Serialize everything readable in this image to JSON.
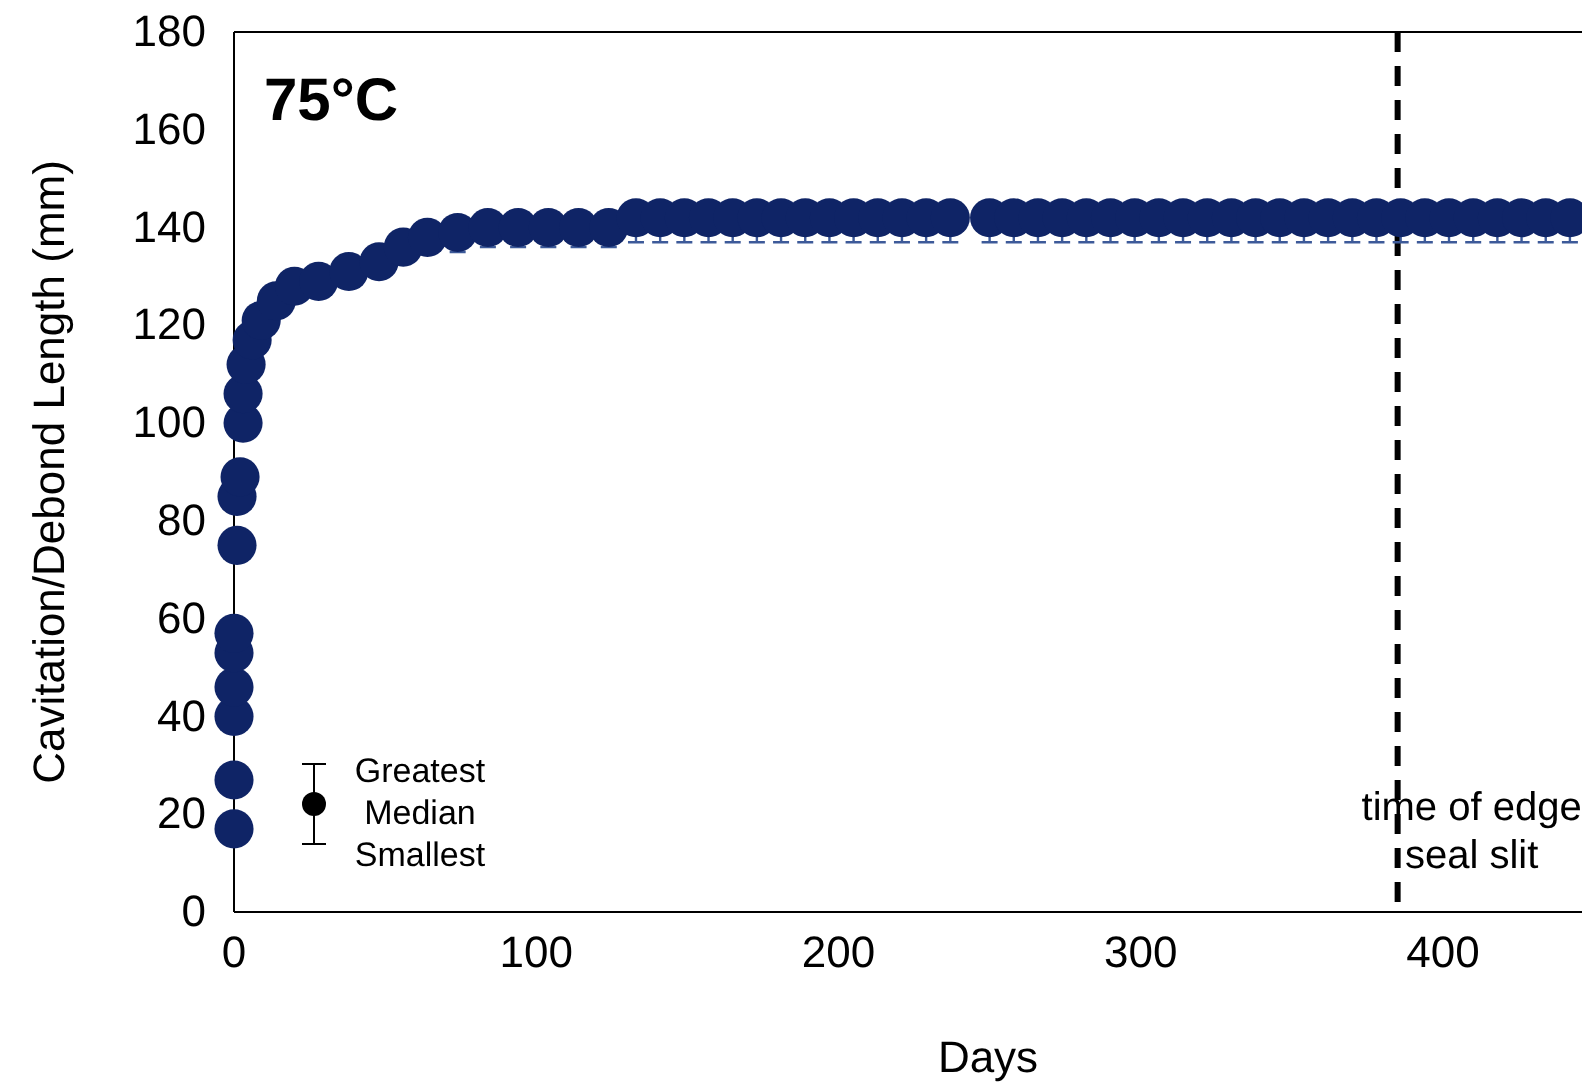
{
  "chart_data": {
    "type": "scatter",
    "xlabel": "Days",
    "ylabel": "Cavitation/Debond Length (mm)",
    "xlim": [
      0,
      446
    ],
    "xticks": [
      0,
      100,
      200,
      300,
      400
    ],
    "ylim": [
      0,
      180
    ],
    "yticks": [
      0,
      20,
      40,
      60,
      80,
      100,
      120,
      140,
      160,
      180
    ],
    "grid": false,
    "marker": "circle",
    "series": [
      {
        "color": "#0f2466",
        "x": [
          0,
          0,
          0,
          0,
          0,
          0,
          1,
          1,
          2,
          3,
          3,
          4,
          6,
          9,
          14,
          20,
          28,
          38,
          48,
          56,
          64,
          74,
          84,
          94,
          104,
          114,
          124,
          133,
          141,
          149,
          157,
          165,
          173,
          181,
          189,
          197,
          205,
          213,
          221,
          229,
          237,
          250,
          258,
          266,
          274,
          282,
          290,
          298,
          306,
          314,
          322,
          330,
          338,
          346,
          354,
          362,
          370,
          378,
          386,
          394,
          402,
          410,
          418,
          426,
          434,
          442
        ],
        "values": [
          17,
          27,
          40,
          46,
          53,
          57,
          75,
          85,
          89,
          100,
          106,
          112,
          117,
          121,
          125,
          128,
          129,
          131,
          133,
          136,
          138,
          139,
          140,
          140,
          140,
          140,
          140,
          142,
          142,
          142,
          142,
          142,
          142,
          142,
          142,
          142,
          142,
          142,
          142,
          142,
          142,
          142,
          142,
          142,
          142,
          142,
          142,
          142,
          142,
          142,
          142,
          142,
          142,
          142,
          142,
          142,
          142,
          142,
          142,
          142,
          142,
          142,
          142,
          142,
          142,
          142
        ],
        "errors": [
          null,
          null,
          null,
          null,
          null,
          null,
          null,
          null,
          null,
          null,
          null,
          null,
          null,
          null,
          null,
          null,
          null,
          null,
          null,
          null,
          null,
          [
            135,
            139
          ],
          [
            136,
            140
          ],
          [
            136,
            140
          ],
          [
            136,
            140
          ],
          [
            136,
            140
          ],
          [
            136,
            140
          ],
          [
            137,
            142
          ],
          [
            137,
            142
          ],
          [
            137,
            142
          ],
          [
            137,
            142
          ],
          [
            137,
            142
          ],
          [
            137,
            142
          ],
          [
            137,
            142
          ],
          [
            137,
            142
          ],
          [
            137,
            142
          ],
          [
            137,
            142
          ],
          [
            137,
            142
          ],
          [
            137,
            142
          ],
          [
            137,
            142
          ],
          [
            137,
            142
          ],
          [
            137,
            142
          ],
          [
            137,
            142
          ],
          [
            137,
            142
          ],
          [
            137,
            142
          ],
          [
            137,
            142
          ],
          [
            137,
            142
          ],
          [
            137,
            142
          ],
          [
            137,
            142
          ],
          [
            137,
            142
          ],
          [
            137,
            142
          ],
          [
            137,
            142
          ],
          [
            137,
            142
          ],
          [
            137,
            142
          ],
          [
            137,
            142
          ],
          [
            137,
            142
          ],
          [
            137,
            142
          ],
          [
            137,
            142
          ],
          [
            137,
            142
          ],
          [
            137,
            142
          ],
          [
            137,
            142
          ],
          [
            137,
            142
          ],
          [
            137,
            142
          ],
          [
            137,
            142
          ],
          [
            137,
            142
          ],
          [
            137,
            142
          ]
        ]
      }
    ],
    "ref_lines": [
      {
        "axis": "x",
        "value": 385,
        "label": "time of edge\nseal slit",
        "color": "#000000",
        "line_style": "dashed"
      }
    ],
    "annotations": [
      "75°C",
      "Greatest",
      "Median",
      "Smallest"
    ]
  }
}
